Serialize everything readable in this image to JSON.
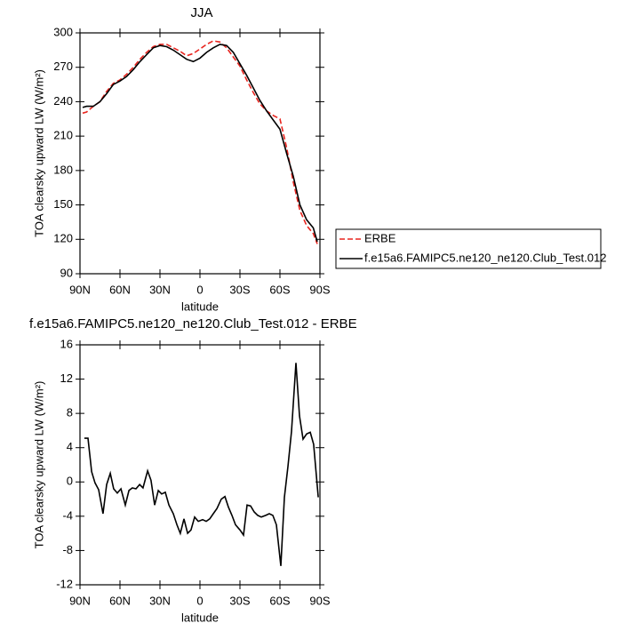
{
  "chart_data": [
    {
      "type": "line",
      "title": "JJA",
      "x_label": "latitude",
      "y_label": "TOA clearsky upward LW (W/m²)",
      "xlim": [
        90,
        -90
      ],
      "ylim": [
        90,
        300
      ],
      "xticks": [
        {
          "value": 90,
          "label": "90N"
        },
        {
          "value": 60,
          "label": "60N"
        },
        {
          "value": 30,
          "label": "30N"
        },
        0,
        {
          "value": -30,
          "label": "30S"
        },
        {
          "value": -60,
          "label": "60S"
        },
        {
          "value": -90,
          "label": "90S"
        }
      ],
      "yticks": [
        90,
        120,
        150,
        180,
        210,
        240,
        270,
        300
      ],
      "legend": "right",
      "x": [
        88,
        85,
        80,
        75,
        70,
        65,
        60,
        55,
        50,
        45,
        40,
        35,
        30,
        25,
        20,
        15,
        10,
        5,
        0,
        -5,
        -10,
        -15,
        -20,
        -25,
        -30,
        -35,
        -40,
        -45,
        -50,
        -55,
        -60,
        -65,
        -70,
        -75,
        -80,
        -85,
        -88
      ],
      "series": [
        {
          "name": "ERBE",
          "color": "#e8251f",
          "line_style": "dashed",
          "values": [
            230,
            231,
            236,
            240,
            249,
            256,
            259,
            264,
            270,
            277,
            283,
            288,
            290,
            290,
            287,
            284,
            280,
            282,
            286,
            290,
            293,
            292,
            287,
            279,
            271,
            259,
            248,
            238,
            232,
            228,
            225,
            200,
            170,
            145,
            132,
            125,
            116
          ]
        },
        {
          "name": "f.e15a6.FAMIPC5.ne120_ne120.Club_Test.012",
          "color": "#000000",
          "line_style": "solid",
          "values": [
            235,
            236,
            236,
            240,
            247,
            255,
            258,
            262,
            268,
            275,
            281,
            287,
            289,
            288,
            285,
            281,
            277,
            275,
            278,
            283,
            287,
            290,
            289,
            283,
            273,
            263,
            252,
            241,
            232,
            224,
            216,
            195,
            175,
            150,
            137,
            130,
            118
          ]
        }
      ]
    },
    {
      "type": "line",
      "title": "f.e15a6.FAMIPC5.ne120_ne120.Club_Test.012 - ERBE",
      "x_label": "latitude",
      "y_label": "TOA clearsky upward LW (W/m²)",
      "xlim": [
        90,
        -90
      ],
      "ylim": [
        -12,
        16
      ],
      "xticks": [
        {
          "value": 90,
          "label": "90N"
        },
        {
          "value": 60,
          "label": "60N"
        },
        {
          "value": 30,
          "label": "30N"
        },
        0,
        {
          "value": -30,
          "label": "30S"
        },
        {
          "value": -60,
          "label": "60S"
        },
        {
          "value": -90,
          "label": "90S"
        }
      ],
      "yticks": [
        -12,
        -8,
        -4,
        0,
        4,
        8,
        12,
        16
      ],
      "color": "#000000",
      "x": [
        86.7,
        84,
        81.3,
        78.7,
        76,
        72.7,
        70,
        67.3,
        64.7,
        62,
        59.3,
        56,
        53.3,
        50.7,
        48,
        45.3,
        42.7,
        39.3,
        36.7,
        34,
        31.3,
        28.7,
        26,
        23.3,
        20,
        17.3,
        14.7,
        12,
        9.3,
        6.7,
        4,
        1.3,
        -2,
        -4.7,
        -7.3,
        -10,
        -12.7,
        -16,
        -18.7,
        -21.3,
        -24,
        -26.7,
        -30,
        -32.7,
        -35.3,
        -38,
        -40.7,
        -43.3,
        -46,
        -49.3,
        -52,
        -54.7,
        -57.3,
        -60.7,
        -63.3,
        -66,
        -68.7,
        -72,
        -74.7,
        -77.3,
        -80,
        -82.7,
        -85.3,
        -88.7
      ],
      "values": [
        5.1,
        5.1,
        1.2,
        -0.1,
        -0.9,
        -3.7,
        -0.3,
        1.0,
        -0.8,
        -1.3,
        -0.8,
        -2.7,
        -1.0,
        -0.7,
        -0.8,
        -0.3,
        -0.7,
        1.3,
        0.2,
        -2.7,
        -1.0,
        -1.4,
        -1.2,
        -2.7,
        -3.7,
        -5.0,
        -6.0,
        -4.3,
        -6.0,
        -5.6,
        -4.1,
        -4.6,
        -4.4,
        -4.6,
        -4.3,
        -3.7,
        -3.1,
        -2.0,
        -1.7,
        -2.9,
        -3.9,
        -5.0,
        -5.6,
        -6.2,
        -2.7,
        -2.8,
        -3.5,
        -3.9,
        -4.1,
        -3.9,
        -3.7,
        -3.9,
        -5.0,
        -9.8,
        -1.8,
        1.8,
        5.9,
        13.9,
        7.7,
        5.0,
        5.6,
        5.8,
        4.4,
        -1.8
      ]
    }
  ]
}
